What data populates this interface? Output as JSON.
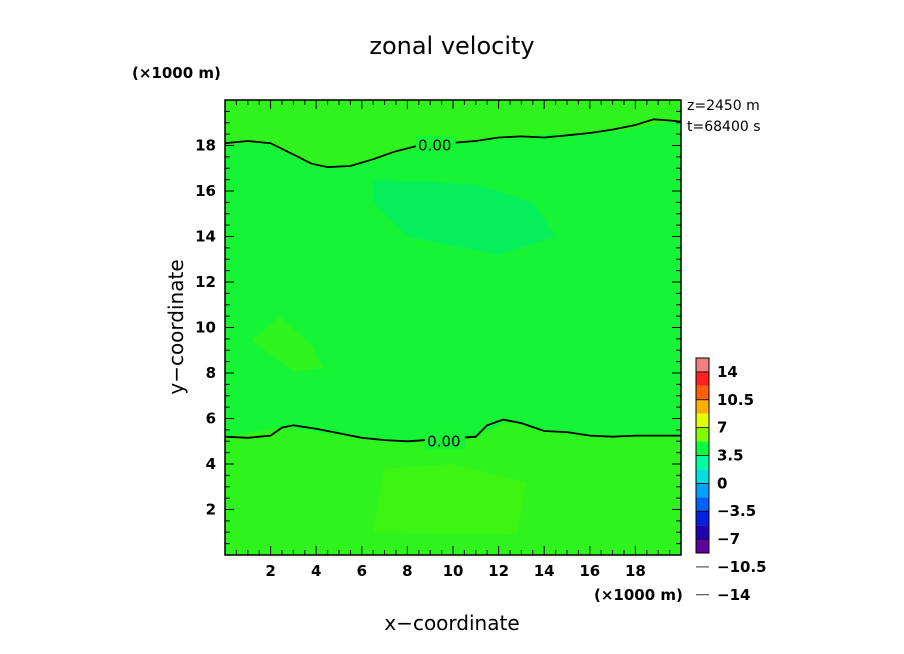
{
  "chart_data": {
    "type": "heatmap",
    "title": "zonal velocity",
    "xlabel": "x−coordinate",
    "ylabel": "y−coordinate",
    "x_unit": "(×1000 m)",
    "y_unit": "(×1000 m)",
    "xlim": [
      0,
      20
    ],
    "ylim": [
      0,
      20
    ],
    "x_ticks": [
      2,
      4,
      6,
      8,
      10,
      12,
      14,
      16,
      18
    ],
    "y_ticks": [
      2,
      4,
      6,
      8,
      10,
      12,
      14,
      16,
      18
    ],
    "x_tick_labels": [
      "2",
      "4",
      "6",
      "8",
      "10",
      "12",
      "14",
      "16",
      "18"
    ],
    "y_tick_labels": [
      "2",
      "4",
      "6",
      "8",
      "10",
      "12",
      "14",
      "16",
      "18"
    ],
    "info": [
      "z=2450  m",
      "t=68400  s"
    ],
    "colorbar": {
      "labels": [
        "14",
        "10.5",
        "7",
        "3.5",
        "0",
        "−3.5",
        "−7",
        "−10.5",
        "−14"
      ],
      "levels": [
        14,
        10.5,
        7,
        3.5,
        0,
        -3.5,
        -7,
        -10.5,
        -14
      ],
      "colors": [
        "#f08080",
        "#ff2020",
        "#ff6000",
        "#ffb000",
        "#e0ff00",
        "#80ff00",
        "#00ff40",
        "#00ffa0",
        "#00e0e0",
        "#00a0ff",
        "#0060ff",
        "#0020e0",
        "#2000b0",
        "#6000a0"
      ]
    },
    "base_color": "#16f535",
    "regions": [
      {
        "value": 1.2,
        "color": "#2ff31c",
        "points": [
          [
            0,
            0
          ],
          [
            20,
            0
          ],
          [
            20,
            5.2
          ],
          [
            17,
            5.2
          ],
          [
            14.5,
            5.4
          ],
          [
            12.5,
            5.9
          ],
          [
            11,
            5.2
          ],
          [
            8,
            4.9
          ],
          [
            4,
            5.4
          ],
          [
            2.5,
            5.6
          ],
          [
            0,
            5.2
          ]
        ]
      },
      {
        "value": 1.8,
        "color": "#3df512",
        "points": [
          [
            6.5,
            1
          ],
          [
            12.8,
            0.9
          ],
          [
            13.2,
            3.2
          ],
          [
            10,
            4
          ],
          [
            7,
            3.8
          ]
        ]
      },
      {
        "value": 0.8,
        "color": "#2ff31c",
        "points": [
          [
            1.2,
            9.4
          ],
          [
            2.4,
            10.5
          ],
          [
            3.8,
            9.2
          ],
          [
            4.3,
            8.2
          ],
          [
            3,
            8.1
          ]
        ]
      },
      {
        "value": 0.8,
        "color": "#2ff31c",
        "points": [
          [
            0,
            18.1
          ],
          [
            2,
            18.1
          ],
          [
            4,
            17.1
          ],
          [
            6,
            17.2
          ],
          [
            8,
            17.8
          ],
          [
            11,
            18.2
          ],
          [
            14,
            18.5
          ],
          [
            17,
            18.6
          ],
          [
            20,
            19.1
          ],
          [
            20,
            20
          ],
          [
            0,
            20
          ]
        ]
      },
      {
        "value": -1.5,
        "color": "#08ef5e",
        "points": [
          [
            6.5,
            16.5
          ],
          [
            11,
            16.3
          ],
          [
            13.5,
            15.5
          ],
          [
            14.5,
            14
          ],
          [
            12,
            13.2
          ],
          [
            8,
            14
          ],
          [
            6.5,
            15.5
          ]
        ]
      }
    ],
    "contours": [
      {
        "label": "0.00",
        "label_at": [
          9.2,
          18.0
        ],
        "points": [
          [
            0,
            18.1
          ],
          [
            1,
            18.2
          ],
          [
            2,
            18.1
          ],
          [
            3,
            17.6
          ],
          [
            3.8,
            17.2
          ],
          [
            4.5,
            17.05
          ],
          [
            5.5,
            17.1
          ],
          [
            6.5,
            17.4
          ],
          [
            7.5,
            17.75
          ],
          [
            8.5,
            18.0
          ],
          [
            11,
            18.2
          ],
          [
            12,
            18.35
          ],
          [
            13,
            18.4
          ],
          [
            14,
            18.35
          ],
          [
            15,
            18.45
          ],
          [
            16,
            18.55
          ],
          [
            17,
            18.7
          ],
          [
            18,
            18.9
          ],
          [
            18.8,
            19.15
          ],
          [
            19.5,
            19.1
          ],
          [
            20,
            19.05
          ]
        ]
      },
      {
        "label": "0.00",
        "label_at": [
          9.6,
          5.0
        ],
        "points": [
          [
            0,
            5.2
          ],
          [
            1,
            5.15
          ],
          [
            2,
            5.25
          ],
          [
            2.5,
            5.6
          ],
          [
            3,
            5.7
          ],
          [
            4,
            5.55
          ],
          [
            5,
            5.35
          ],
          [
            6,
            5.15
          ],
          [
            7,
            5.05
          ],
          [
            8,
            5.0
          ],
          [
            11,
            5.2
          ],
          [
            11.5,
            5.7
          ],
          [
            12.2,
            5.95
          ],
          [
            13,
            5.8
          ],
          [
            14,
            5.45
          ],
          [
            15,
            5.4
          ],
          [
            16,
            5.25
          ],
          [
            17,
            5.2
          ],
          [
            18,
            5.25
          ],
          [
            19,
            5.25
          ],
          [
            20,
            5.25
          ]
        ]
      }
    ]
  }
}
